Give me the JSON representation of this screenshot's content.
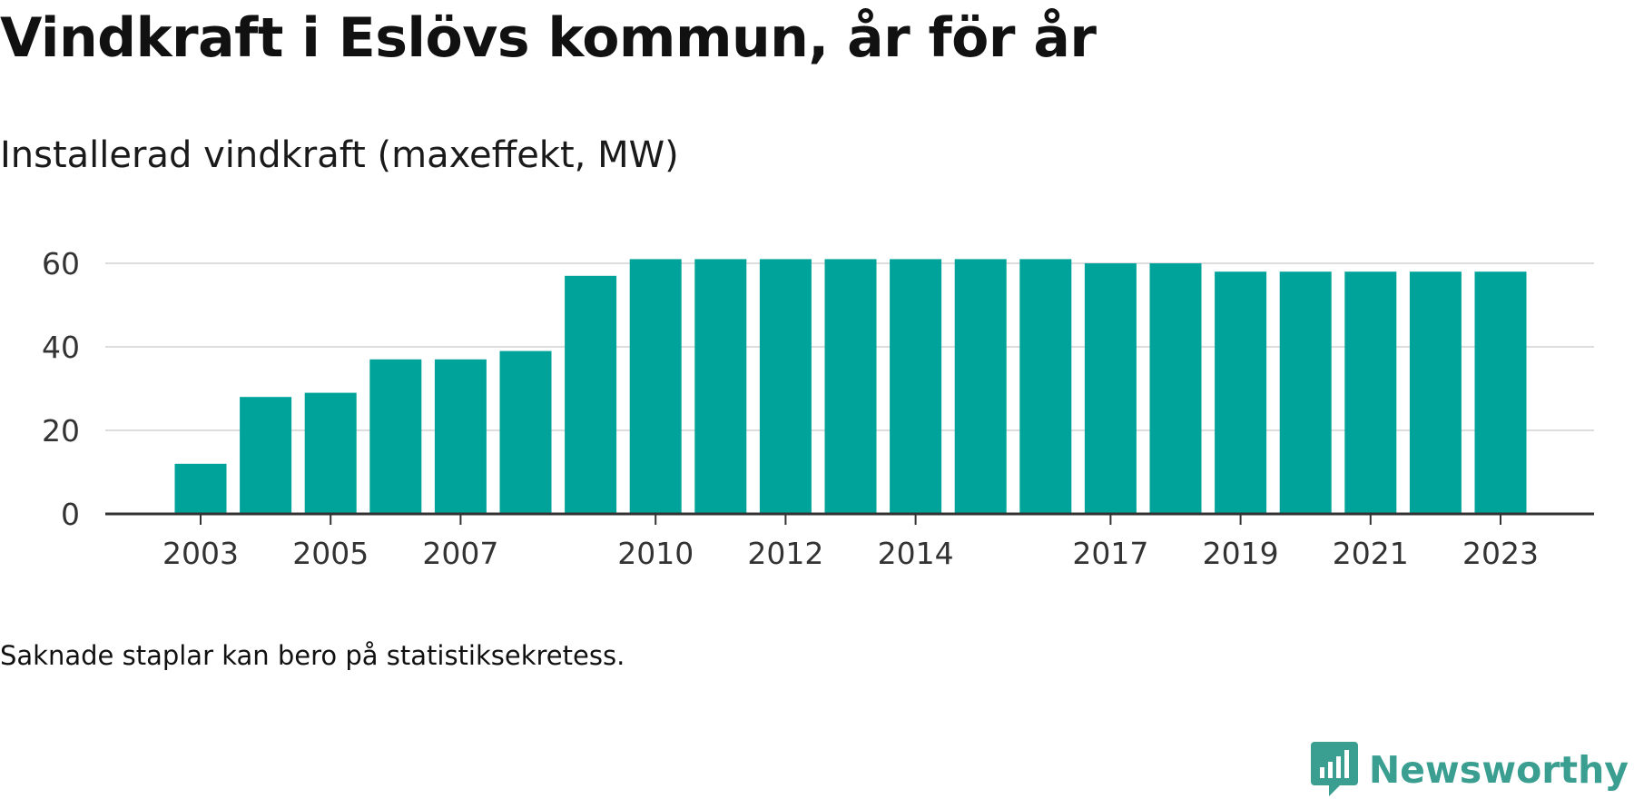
{
  "chart_data": {
    "type": "bar",
    "title": "Vindkraft i Eslövs kommun, år för år",
    "subtitle": "Installerad vindkraft (maxeffekt, MW)",
    "xlabel": "",
    "ylabel": "",
    "categories": [
      "2003",
      "2004",
      "2005",
      "2006",
      "2007",
      "2008",
      "2009",
      "2010",
      "2011",
      "2012",
      "2013",
      "2014",
      "2015",
      "2016",
      "2017",
      "2018",
      "2019",
      "2020",
      "2021",
      "2022",
      "2023"
    ],
    "values": [
      12,
      28,
      29,
      37,
      37,
      39,
      57,
      61,
      61,
      61,
      61,
      61,
      61,
      61,
      60,
      60,
      58,
      58,
      58,
      58,
      58
    ],
    "x_tick_labels": [
      "2003",
      "2005",
      "2007",
      "2010",
      "2012",
      "2014",
      "2017",
      "2019",
      "2021",
      "2023"
    ],
    "y_ticks": [
      0,
      20,
      40,
      60
    ],
    "ylim": [
      0,
      60
    ],
    "grid": true,
    "legend": "none",
    "bar_color": "#00a39a",
    "gridline_color": "#dddddd",
    "axis_color": "#333333",
    "note": "Saknade staplar kan bero på statistiksekretess."
  },
  "brand": {
    "name": "Newsworthy",
    "logo_icon": "newsworthy-bar-chart-bubble-icon",
    "color": "#3a9e91"
  }
}
